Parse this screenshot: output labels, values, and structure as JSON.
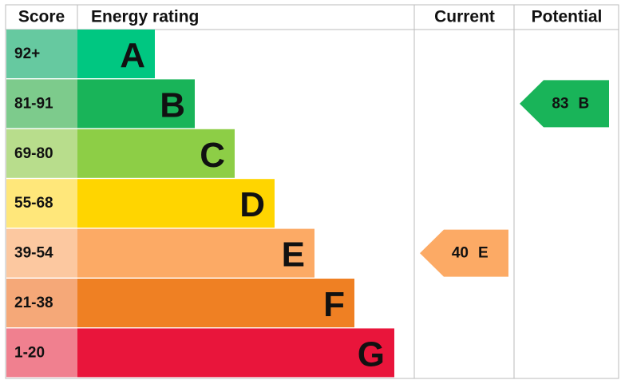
{
  "header": {
    "score": "Score",
    "rating": "Energy rating",
    "current": "Current",
    "potential": "Potential"
  },
  "bands": [
    {
      "score": "92+",
      "letter": "A",
      "score_color": "#66c9a0",
      "color": "#00c781"
    },
    {
      "score": "81-91",
      "letter": "B",
      "score_color": "#7dcb8c",
      "color": "#19b459"
    },
    {
      "score": "69-80",
      "letter": "C",
      "score_color": "#b8dd8c",
      "color": "#8dce46"
    },
    {
      "score": "55-68",
      "letter": "D",
      "score_color": "#ffe77a",
      "color": "#ffd500"
    },
    {
      "score": "39-54",
      "letter": "E",
      "score_color": "#fcc8a0",
      "color": "#fcaa65"
    },
    {
      "score": "21-38",
      "letter": "F",
      "score_color": "#f5a878",
      "color": "#ef8023"
    },
    {
      "score": "1-20",
      "letter": "G",
      "score_color": "#f0808f",
      "color": "#e9153b"
    }
  ],
  "current": {
    "value": "40",
    "letter": "E"
  },
  "potential": {
    "value": "83",
    "letter": "B"
  }
}
